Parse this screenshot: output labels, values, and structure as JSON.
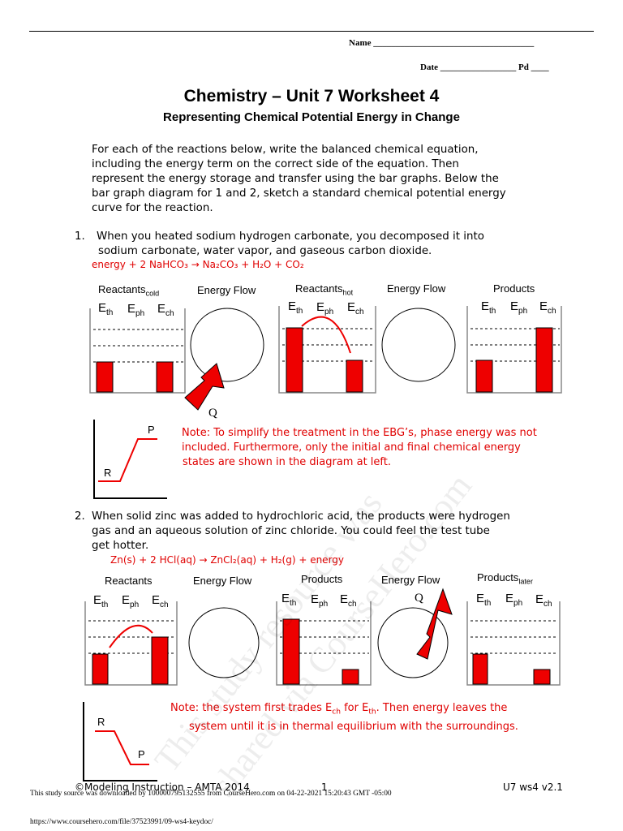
{
  "header": {
    "name_label": "Name ____________________________________",
    "date_label": "Date _________________ Pd ____"
  },
  "title": "Chemistry – Unit 7 Worksheet 4",
  "subtitle": "Representing Chemical Potential Energy in Change",
  "instructions": [
    "For each of the reactions below, write the balanced chemical equation,",
    "including the energy term on the correct side of the equation.  Then",
    "represent the energy storage and transfer using the bar graphs.  Below the",
    "bar graph diagram for 1 and 2, sketch a standard chemical potential energy",
    "curve for the reaction."
  ],
  "q1": {
    "number": "1.",
    "lines": [
      "When you heated sodium hydrogen carbonate, you decomposed it into",
      "sodium carbonate, water vapor, and gaseous carbon dioxide."
    ],
    "equation": "energy  +  2 NaHCO₃ → Na₂CO₃  +  H₂O  +  CO₂",
    "headers": {
      "reactants": "Reactants",
      "reactants_sub": "cold",
      "energy_flow_1": "Energy Flow",
      "reactants_hot": "Reactants",
      "reactants_hot_sub": "hot",
      "energy_flow_2": "Energy Flow",
      "products": "Products"
    },
    "q_label": "Q",
    "curve": {
      "r": "R",
      "p": "P"
    },
    "note": [
      "Note: To simplify the treatment in the EBG’s, phase energy was not",
      "included. Furthermore, only the initial and final chemical energy",
      "states are shown in the diagram at left."
    ]
  },
  "q2": {
    "number": "2.",
    "lines": [
      "When solid zinc was added to hydrochloric acid, the products were hydrogen",
      "gas and an aqueous solution of zinc chloride.  You could feel the test tube",
      "get hotter."
    ],
    "equation": "Zn(s)  +  2 HCl(aq) → ZnCl₂(aq)  +  H₂(g)  +  energy",
    "headers": {
      "reactants": "Reactants",
      "energy_flow_1": "Energy Flow",
      "products": "Products",
      "energy_flow_2": "Energy Flow",
      "products_later": "Products",
      "products_later_sub": "later"
    },
    "q_label": "Q",
    "curve": {
      "r": "R",
      "p": "P"
    },
    "note_line1": "Note: the system first trades E",
    "note_sub1": "ch",
    "note_mid": " for E",
    "note_sub2": "th",
    "note_end": ". Then energy leaves the",
    "note_line2": "system until it is in thermal equilibrium with the surroundings."
  },
  "energy_labels": {
    "th": "th",
    "ph": "ph",
    "ch": "ch",
    "E": "E"
  },
  "footer": {
    "copyright": "©Modeling Instruction – AMTA 2014",
    "page": "1",
    "version": "U7 ws4 v2.1",
    "source_notice": "This study source was downloaded by 100000795132555 from CourseHero.com on 04-22-2021 15:20:43 GMT -05:00",
    "url": "https://www.coursehero.com/file/37523991/09-ws4-keydoc/"
  },
  "watermark": [
    "This study resource was",
    "shared via CourseHero.com"
  ],
  "colors": {
    "accent": "#e00000",
    "text": "#000000"
  }
}
